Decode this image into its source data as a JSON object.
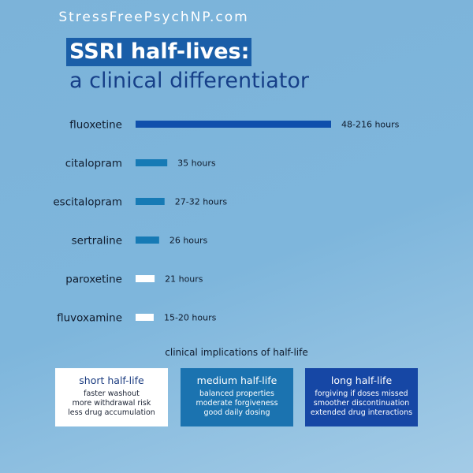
{
  "site": "StressFreePsychNP.com",
  "title_line1": "SSRI half-lives:",
  "title_line2": "a clinical differentiator",
  "chart_data": {
    "type": "bar",
    "orientation": "horizontal",
    "unit": "hours",
    "categories": [
      "fluoxetine",
      "citalopram",
      "escitalopram",
      "sertraline",
      "paroxetine",
      "fluvoxamine"
    ],
    "values": [
      216,
      35,
      32,
      26,
      21,
      20
    ],
    "data_labels": [
      "48-216 hours",
      "35 hours",
      "27-32 hours",
      "26 hours",
      "21 hours",
      "15-20 hours"
    ],
    "bar_colors": [
      "#0f4fac",
      "#167ab5",
      "#167ab5",
      "#167ab5",
      "#ffffff",
      "#ffffff"
    ],
    "title": "SSRI half-lives",
    "xlabel": "",
    "ylabel": ""
  },
  "implications": {
    "heading": "clinical implications of half-life",
    "cards": [
      {
        "title": "short half-life",
        "lines": [
          "faster washout",
          "more withdrawal risk",
          "less drug accumulation"
        ]
      },
      {
        "title": "medium half-life",
        "lines": [
          "balanced properties",
          "moderate forgiveness",
          "good daily dosing"
        ]
      },
      {
        "title": "long half-life",
        "lines": [
          "forgiving if doses missed",
          "smoother discontinuation",
          "extended drug interactions"
        ]
      }
    ]
  }
}
